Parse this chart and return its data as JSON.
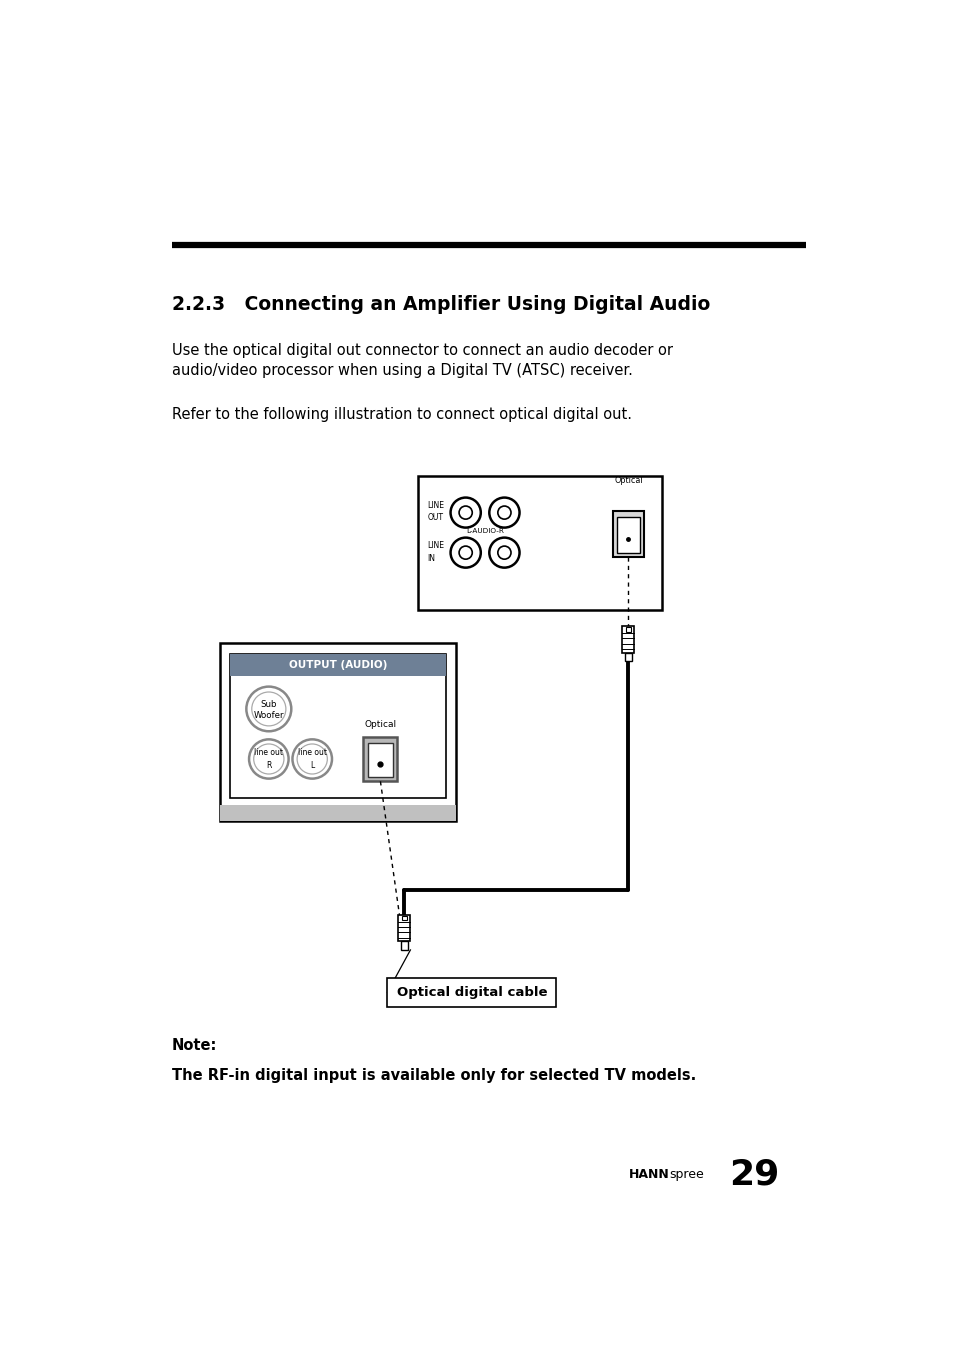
{
  "bg_color": "#ffffff",
  "page_width": 9.54,
  "page_height": 13.52,
  "section_title": "2.2.3   Connecting an Amplifier Using Digital Audio",
  "body_text_1": "Use the optical digital out connector to connect an audio decoder or\naudio/video processor when using a Digital TV (ATSC) receiver.",
  "body_text_2": "Refer to the following illustration to connect optical digital out.",
  "note_label": "Note:",
  "note_text": "The RF-in digital input is available only for selected TV models.",
  "footer_brand": "HANN",
  "footer_spree": "spree",
  "footer_page": "29",
  "text_color": "#000000",
  "panel_gray": "#6e8096"
}
